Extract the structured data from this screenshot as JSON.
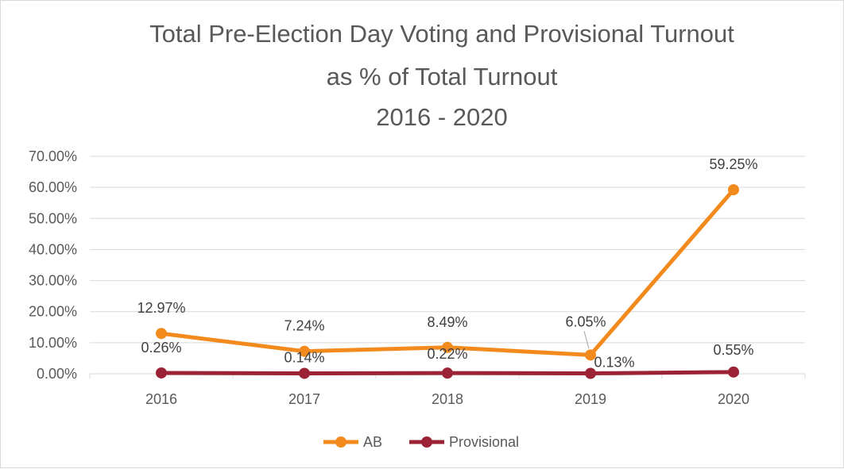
{
  "chart_data": {
    "type": "line",
    "title": [
      "Total Pre-Election Day Voting and Provisional Turnout",
      "as % of Total Turnout",
      "2016 - 2020"
    ],
    "categories": [
      "2016",
      "2017",
      "2018",
      "2019",
      "2020"
    ],
    "ylim": [
      0,
      70
    ],
    "yticks": [
      "0.00%",
      "10.00%",
      "20.00%",
      "30.00%",
      "40.00%",
      "50.00%",
      "60.00%",
      "70.00%"
    ],
    "grid": true,
    "legend_position": "bottom",
    "series": [
      {
        "name": "AB",
        "color": "#F28A1E",
        "values": [
          12.97,
          7.24,
          8.49,
          6.05,
          59.25
        ],
        "labels": [
          "12.97%",
          "7.24%",
          "8.49%",
          "6.05%",
          "59.25%"
        ]
      },
      {
        "name": "Provisional",
        "color": "#9B2335",
        "values": [
          0.26,
          0.14,
          0.22,
          0.13,
          0.55
        ],
        "labels": [
          "0.26%",
          "0.14%",
          "0.22%",
          "0.13%",
          "0.55%"
        ]
      }
    ]
  }
}
